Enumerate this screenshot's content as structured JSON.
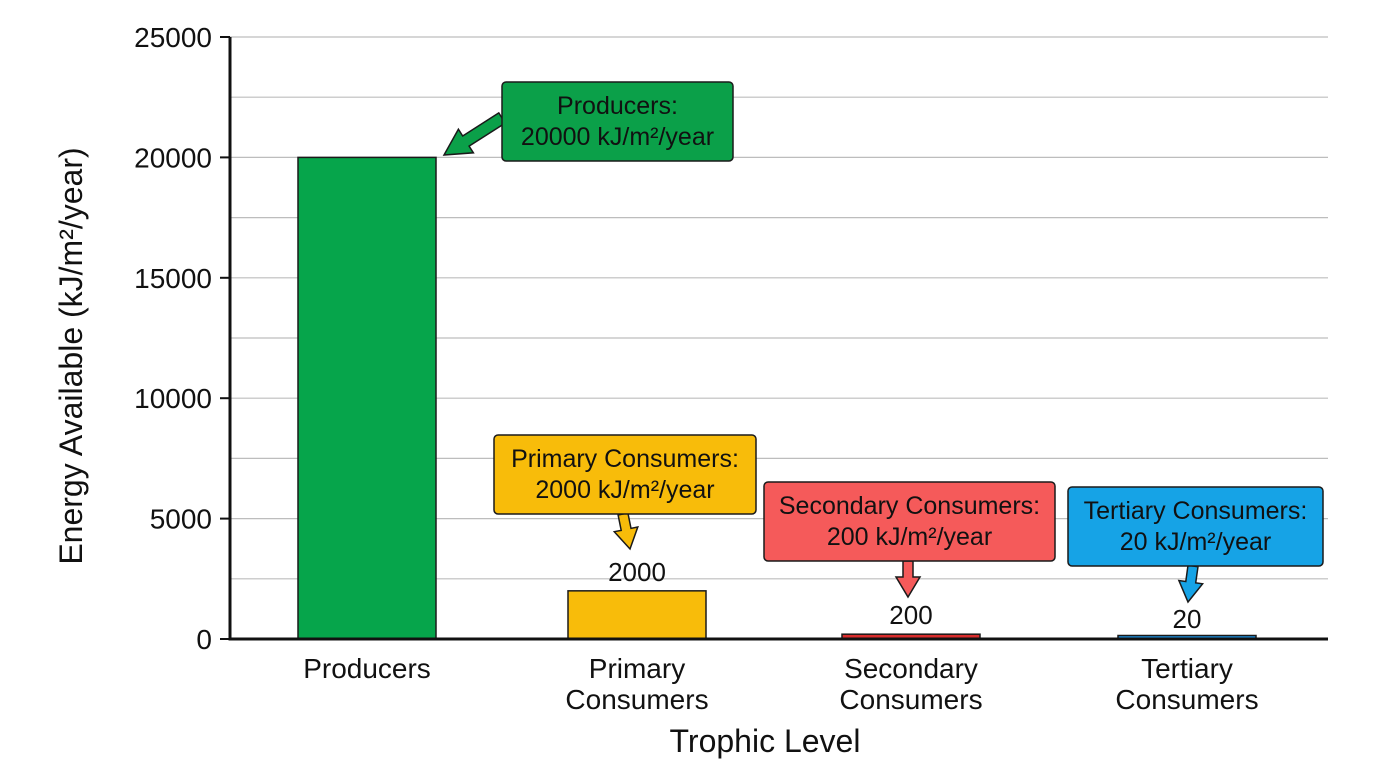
{
  "chart_data": {
    "type": "bar",
    "categories": [
      "Producers",
      "Primary Consumers",
      "Secondary Consumers",
      "Tertiary Consumers"
    ],
    "category_lines": [
      [
        "Producers"
      ],
      [
        "Primary",
        "Consumers"
      ],
      [
        "Secondary",
        "Consumers"
      ],
      [
        "Tertiary",
        "Consumers"
      ]
    ],
    "values": [
      20000,
      2000,
      200,
      20
    ],
    "data_labels": [
      "",
      "2000",
      "200",
      "20"
    ],
    "bar_colors": [
      "#06a54b",
      "#f8bc0a",
      "#d92c2c",
      "#1a8fe0"
    ],
    "xlabel": "Trophic Level",
    "ylabel": "Energy Available (kJ/m²/year)",
    "ylim": [
      0,
      25000
    ],
    "yticks": [
      0,
      5000,
      10000,
      15000,
      20000,
      25000
    ],
    "ytick_labels": [
      "0",
      "5000",
      "10000",
      "15000",
      "20000",
      "25000"
    ],
    "grid": true,
    "legend": "none",
    "annotations": [
      {
        "category": "Producers",
        "lines": [
          "Producers:",
          "20000 kJ/m²/year"
        ],
        "color": "#0ba049",
        "arrow": "left"
      },
      {
        "category": "Primary Consumers",
        "lines": [
          "Primary Consumers:",
          "2000 kJ/m²/year"
        ],
        "color": "#f8bc0a",
        "arrow": "down"
      },
      {
        "category": "Secondary Consumers",
        "lines": [
          "Secondary Consumers:",
          "200 kJ/m²/year"
        ],
        "color": "#f55a5a",
        "arrow": "down"
      },
      {
        "category": "Tertiary Consumers",
        "lines": [
          "Tertiary Consumers:",
          "20 kJ/m²/year"
        ],
        "color": "#16a3e6",
        "arrow": "down"
      }
    ]
  }
}
